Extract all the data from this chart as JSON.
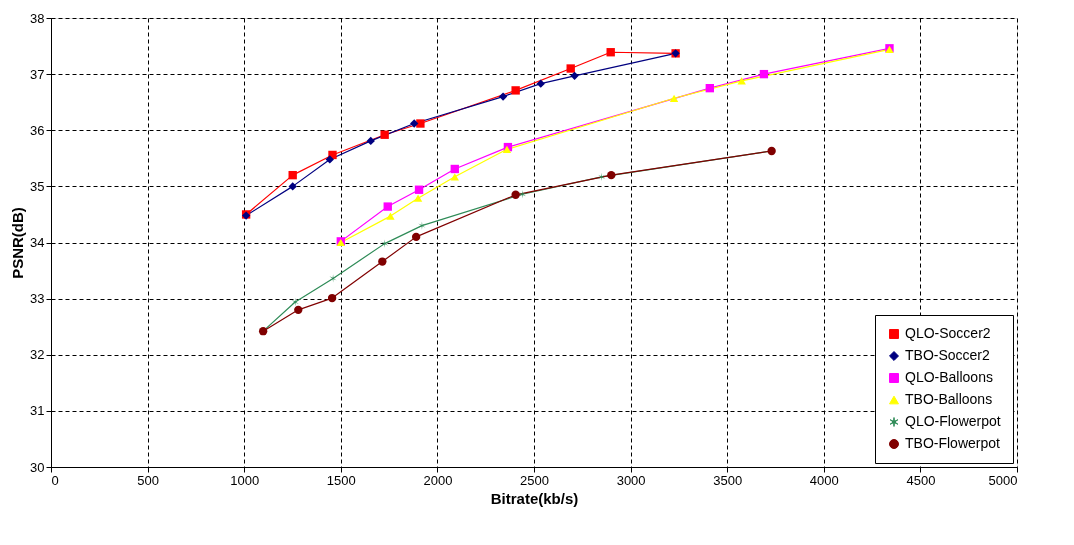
{
  "chart_data": {
    "type": "line",
    "xlabel": "Bitrate(kb/s)",
    "ylabel": "PSNR(dB)",
    "xlim": [
      0,
      5000
    ],
    "xticks": [
      0,
      500,
      1000,
      1500,
      2000,
      2500,
      3000,
      3500,
      4000,
      4500,
      5000
    ],
    "ylim": [
      30,
      38
    ],
    "yticks": [
      30,
      31,
      32,
      33,
      34,
      35,
      36,
      37,
      38
    ],
    "grid": true,
    "legend": "bottom right",
    "line_style": "solid",
    "series": [
      {
        "name": "QLO-Soccer2",
        "color": "#ff0000",
        "marker": "square",
        "x": [
          1010,
          1251,
          1457,
          1727,
          1912,
          2405,
          2690,
          2897,
          3233
        ],
        "values": [
          34.5,
          35.2,
          35.56,
          35.92,
          36.12,
          36.71,
          37.1,
          37.39,
          37.37
        ]
      },
      {
        "name": "TBO-Soccer2",
        "color": "#000080",
        "marker": "diamond",
        "x": [
          1010,
          1251,
          1443,
          1655,
          1880,
          2340,
          2535,
          2710,
          3233
        ],
        "values": [
          34.48,
          35.0,
          35.48,
          35.81,
          36.12,
          36.6,
          36.83,
          36.97,
          37.37
        ]
      },
      {
        "name": "QLO-Balloons",
        "color": "#ff00ff",
        "marker": "square",
        "x": [
          1500,
          1743,
          1905,
          2090,
          2365,
          3410,
          3690,
          4340
        ],
        "values": [
          34.02,
          34.64,
          34.94,
          35.31,
          35.7,
          36.75,
          37.0,
          37.46
        ]
      },
      {
        "name": "TBO-Balloons",
        "color": "#ffff00",
        "marker": "triangle",
        "x": [
          1500,
          1757,
          1900,
          2090,
          2360,
          3225,
          3575,
          4340
        ],
        "values": [
          34.0,
          34.47,
          34.79,
          35.17,
          35.66,
          36.57,
          36.88,
          37.44
        ]
      },
      {
        "name": "QLO-Flowerpot",
        "color": "#2e8b57",
        "marker": "cross",
        "x": [
          1098,
          1264,
          1460,
          1727,
          1920,
          2440,
          2850,
          3730
        ],
        "values": [
          32.42,
          32.94,
          33.36,
          33.98,
          34.3,
          34.86,
          35.17,
          35.63
        ]
      },
      {
        "name": "TBO-Flowerpot",
        "color": "#800000",
        "marker": "circle",
        "x": [
          1098,
          1280,
          1455,
          1715,
          1890,
          2405,
          2900,
          3730
        ],
        "values": [
          32.42,
          32.8,
          33.01,
          33.66,
          34.1,
          34.85,
          35.2,
          35.63
        ]
      }
    ]
  }
}
